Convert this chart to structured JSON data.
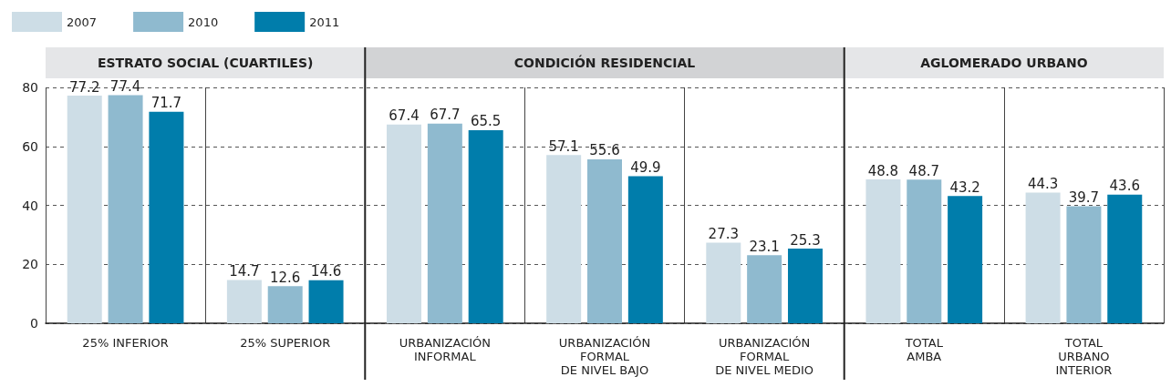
{
  "chart_data": {
    "type": "bar",
    "categories": [
      "25% INFERIOR",
      "25% SUPERIOR",
      "URBANIZACIÓN\nINFORMAL",
      "URBANIZACIÓN\nFORMAL\nDE NIVEL BAJO",
      "URBANIZACIÓN\nFORMAL\nDE NIVEL MEDIO",
      "TOTAL\nAMBA",
      "TOTAL\nURBANO\nINTERIOR"
    ],
    "series": [
      {
        "name": "2007",
        "color": "#cddde6",
        "values": [
          77.2,
          14.7,
          67.4,
          57.1,
          27.3,
          48.8,
          44.3
        ]
      },
      {
        "name": "2010",
        "color": "#8fbacf",
        "values": [
          77.4,
          12.6,
          67.7,
          55.6,
          23.1,
          48.7,
          39.7
        ]
      },
      {
        "name": "2011",
        "color": "#007dab",
        "values": [
          71.7,
          14.6,
          65.5,
          49.9,
          25.3,
          43.2,
          43.6
        ]
      }
    ],
    "ylim": [
      0,
      80
    ],
    "yticks": [
      0,
      20,
      40,
      60,
      80
    ],
    "grid": "y",
    "legend": "top left",
    "data_labels": true,
    "annotations": [
      "ESTRATO SOCIAL (CUARTILES)",
      "CONDICIÓN RESIDENCIAL",
      "AGLOMERADO URBANO"
    ]
  }
}
